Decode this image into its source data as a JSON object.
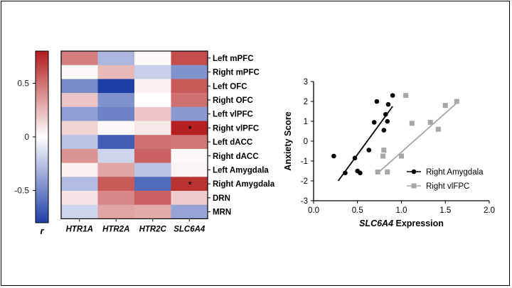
{
  "chart_data": [
    {
      "type": "heatmap",
      "rows": [
        "Left mPFC",
        "Right mPFC",
        "Left OFC",
        "Right OFC",
        "Left vlPFC",
        "Right vlPFC",
        "Left dACC",
        "Right dACC",
        "Left Amygdala",
        "Right Amygdala",
        "DRN",
        "MRN"
      ],
      "columns": [
        "HTR1A",
        "HTR2A",
        "HTR2C",
        "SLC6A4"
      ],
      "values": [
        [
          0.45,
          -0.3,
          0.02,
          0.62
        ],
        [
          0.02,
          0.25,
          -0.2,
          -0.45
        ],
        [
          -0.48,
          -0.8,
          0.05,
          0.58
        ],
        [
          0.2,
          -0.45,
          0.0,
          0.5
        ],
        [
          -0.4,
          -0.52,
          0.2,
          -0.42
        ],
        [
          0.15,
          0.02,
          0.08,
          0.78
        ],
        [
          -0.25,
          -0.68,
          0.5,
          0.48
        ],
        [
          0.38,
          -0.18,
          0.55,
          0.02
        ],
        [
          0.05,
          0.32,
          -0.25,
          0.04
        ],
        [
          -0.28,
          0.58,
          -0.62,
          0.72
        ],
        [
          0.1,
          0.42,
          0.55,
          0.18
        ],
        [
          -0.18,
          0.32,
          0.3,
          -0.38
        ]
      ],
      "significant": [
        [
          5,
          3
        ],
        [
          9,
          3
        ]
      ],
      "significance_marker": "*",
      "colorbar": {
        "ticks": [
          "0.5",
          "0",
          "-0.5"
        ],
        "tick_values": [
          0.5,
          0,
          -0.5
        ],
        "range": [
          -0.8,
          0.8
        ],
        "label": "r",
        "high_color": "#b31b1b",
        "mid_color": "#ffffff",
        "low_color": "#1f3fa6"
      }
    },
    {
      "type": "scatter",
      "xlabel_italic": "SLC6A4",
      "xlabel_rest": " Expression",
      "ylabel": "Anxiety Score",
      "xlim": [
        0.0,
        2.0
      ],
      "ylim": [
        -3,
        3
      ],
      "x_ticks": [
        "0.0",
        "0.5",
        "1.0",
        "1.5",
        "2.0"
      ],
      "x_tick_values": [
        0.0,
        0.5,
        1.0,
        1.5,
        2.0
      ],
      "y_ticks": [
        "3",
        "2",
        "1",
        "0",
        "-1",
        "-2",
        "-3"
      ],
      "y_tick_values": [
        3,
        2,
        1,
        0,
        -1,
        -2,
        -3
      ],
      "series": [
        {
          "name": "Right Amygdala",
          "color": "#000000",
          "marker": "circle",
          "points": [
            [
              0.23,
              -0.75
            ],
            [
              0.36,
              -1.6
            ],
            [
              0.47,
              -0.85
            ],
            [
              0.5,
              -1.5
            ],
            [
              0.53,
              -1.6
            ],
            [
              0.63,
              -0.45
            ],
            [
              0.69,
              0.95
            ],
            [
              0.72,
              2.0
            ],
            [
              0.8,
              0.55
            ],
            [
              0.82,
              1.35
            ],
            [
              0.84,
              1.0
            ],
            [
              0.85,
              1.85
            ],
            [
              0.9,
              2.3
            ]
          ],
          "fit": [
            [
              0.28,
              -2.0
            ],
            [
              0.9,
              1.75
            ]
          ]
        },
        {
          "name": "Right vlFPC",
          "color": "#a6a6a6",
          "marker": "square",
          "points": [
            [
              0.73,
              -1.55
            ],
            [
              0.79,
              -0.75
            ],
            [
              0.8,
              -0.45
            ],
            [
              0.84,
              -1.55
            ],
            [
              1.0,
              -0.75
            ],
            [
              1.05,
              2.3
            ],
            [
              1.12,
              0.9
            ],
            [
              1.33,
              0.95
            ],
            [
              1.42,
              0.6
            ],
            [
              1.5,
              1.8
            ],
            [
              1.63,
              2.0
            ]
          ],
          "fit": [
            [
              0.72,
              -1.65
            ],
            [
              1.65,
              2.0
            ]
          ]
        }
      ],
      "legend_position": "bottom-right"
    }
  ]
}
